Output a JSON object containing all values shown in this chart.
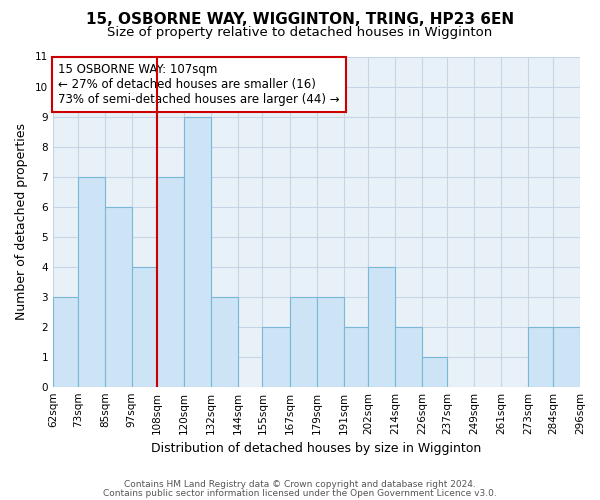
{
  "title": "15, OSBORNE WAY, WIGGINTON, TRING, HP23 6EN",
  "subtitle": "Size of property relative to detached houses in Wigginton",
  "xlabel": "Distribution of detached houses by size in Wigginton",
  "ylabel": "Number of detached properties",
  "bar_edges": [
    62,
    73,
    85,
    97,
    108,
    120,
    132,
    144,
    155,
    167,
    179,
    191,
    202,
    214,
    226,
    237,
    249,
    261,
    273,
    284,
    296
  ],
  "bar_heights": [
    3,
    7,
    6,
    4,
    7,
    9,
    3,
    0,
    2,
    3,
    3,
    2,
    4,
    2,
    1,
    0,
    0,
    0,
    2,
    2
  ],
  "tick_labels": [
    "62sqm",
    "73sqm",
    "85sqm",
    "97sqm",
    "108sqm",
    "120sqm",
    "132sqm",
    "144sqm",
    "155sqm",
    "167sqm",
    "179sqm",
    "191sqm",
    "202sqm",
    "214sqm",
    "226sqm",
    "237sqm",
    "249sqm",
    "261sqm",
    "273sqm",
    "284sqm",
    "296sqm"
  ],
  "bar_color": "#cce4f5",
  "bar_edge_color": "#7ab8d9",
  "reference_line_x": 108,
  "reference_line_color": "#cc0000",
  "annotation_box_text": "15 OSBORNE WAY: 107sqm\n← 27% of detached houses are smaller (16)\n73% of semi-detached houses are larger (44) →",
  "annotation_box_color": "#cc0000",
  "ylim": [
    0,
    11
  ],
  "yticks": [
    0,
    1,
    2,
    3,
    4,
    5,
    6,
    7,
    8,
    9,
    10,
    11
  ],
  "footer_line1": "Contains HM Land Registry data © Crown copyright and database right 2024.",
  "footer_line2": "Contains public sector information licensed under the Open Government Licence v3.0.",
  "bg_color": "#ffffff",
  "plot_bg_color": "#e8f0f8",
  "grid_color": "#c5d5e5",
  "title_fontsize": 11,
  "subtitle_fontsize": 9.5,
  "axis_label_fontsize": 9,
  "tick_fontsize": 7.5,
  "annotation_fontsize": 8.5,
  "footer_fontsize": 6.5
}
